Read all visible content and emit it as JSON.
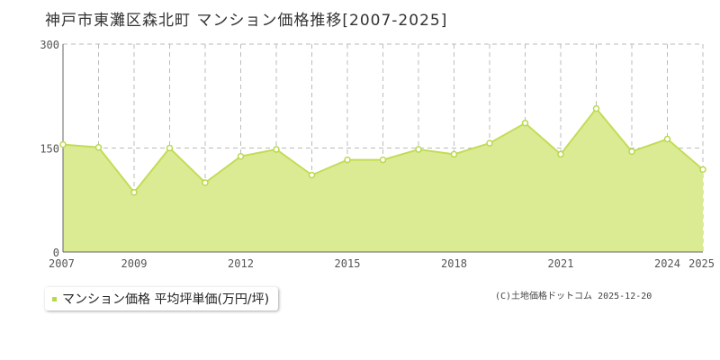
{
  "title": "神戸市東灘区森北町 マンション価格推移[2007-2025]",
  "legend": {
    "label": "マンション価格 平均坪単価(万円/坪)"
  },
  "copyright": "(C)土地価格ドットコム 2025-12-20",
  "colors": {
    "fill": "#dbeb94",
    "line": "#c3dc57",
    "marker": "#b8d94a",
    "grid": "#bbbbbb",
    "axis": "#666666"
  },
  "chart_data": {
    "type": "area",
    "title": "神戸市東灘区森北町 マンション価格推移[2007-2025]",
    "xlabel": "",
    "ylabel": "",
    "x_tick_labels": [
      "2007",
      "2009",
      "2012",
      "2015",
      "2018",
      "2021",
      "2024",
      "2025"
    ],
    "y_tick_labels": [
      "0",
      "150",
      "300"
    ],
    "ylim": [
      0,
      300
    ],
    "xlim": [
      2007,
      2025
    ],
    "grid": true,
    "legend_position": "bottom-left",
    "series": [
      {
        "name": "マンション価格 平均坪単価(万円/坪)",
        "x": [
          2007,
          2008,
          2009,
          2010,
          2011,
          2012,
          2013,
          2014,
          2015,
          2016,
          2017,
          2018,
          2019,
          2020,
          2021,
          2022,
          2023,
          2024,
          2025
        ],
        "values": [
          155,
          151,
          86,
          150,
          100,
          138,
          148,
          111,
          133,
          133,
          148,
          141,
          157,
          186,
          141,
          207,
          145,
          163,
          119
        ]
      }
    ]
  }
}
